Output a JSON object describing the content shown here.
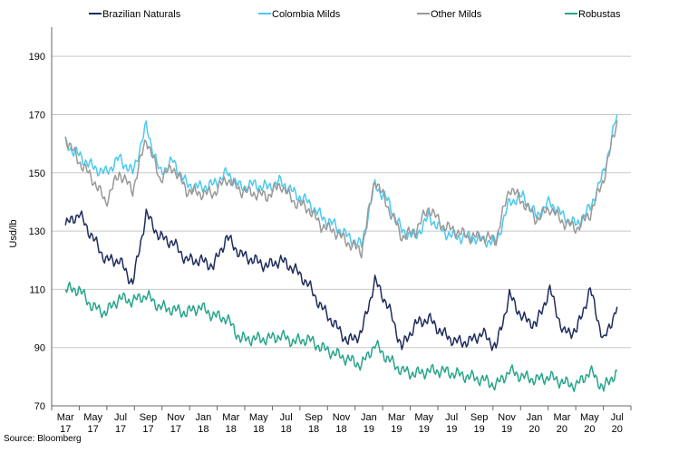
{
  "chart_data": {
    "type": "line",
    "title": "",
    "xlabel": "",
    "ylabel": "Usd/lb",
    "ylim": [
      70,
      200
    ],
    "yticks": [
      70,
      90,
      110,
      130,
      150,
      170,
      190
    ],
    "grid": "horizontal",
    "legend_position": "top",
    "x_tick_labels": [
      [
        "Mar",
        "17"
      ],
      [
        "May",
        "17"
      ],
      [
        "Jul",
        "17"
      ],
      [
        "Sep",
        "17"
      ],
      [
        "Nov",
        "17"
      ],
      [
        "Jan",
        "18"
      ],
      [
        "Mar",
        "18"
      ],
      [
        "May",
        "18"
      ],
      [
        "Jul",
        "18"
      ],
      [
        "Sep",
        "18"
      ],
      [
        "Nov",
        "18"
      ],
      [
        "Jan",
        "19"
      ],
      [
        "Mar",
        "19"
      ],
      [
        "May",
        "19"
      ],
      [
        "Jul",
        "19"
      ],
      [
        "Sep",
        "19"
      ],
      [
        "Nov",
        "19"
      ],
      [
        "Jan",
        "20"
      ],
      [
        "Mar",
        "20"
      ],
      [
        "May",
        "20"
      ],
      [
        "Jul",
        "20"
      ]
    ],
    "x": [
      0,
      0.5,
      1,
      1.5,
      2,
      2.5,
      3,
      3.5,
      4,
      4.5,
      5,
      5.5,
      6,
      6.5,
      7,
      7.5,
      8,
      8.5,
      9,
      9.5,
      10,
      10.5,
      11,
      11.5,
      12,
      12.5,
      13,
      13.5,
      14,
      14.5,
      15,
      15.5,
      16,
      16.5,
      17,
      17.5,
      18,
      18.5,
      19,
      19.5,
      20,
      20.5
    ],
    "series": [
      {
        "name": "Brazilian Naturals",
        "color": "#1f2d5c",
        "values": [
          132,
          136,
          128,
          120,
          120,
          112,
          136,
          128,
          126,
          120,
          120,
          118,
          128,
          122,
          120,
          118,
          120,
          117,
          112,
          104,
          98,
          92,
          95,
          113,
          104,
          90,
          98,
          100,
          95,
          92,
          92,
          95,
          90,
          108,
          100,
          98,
          110,
          95,
          96,
          110,
          92,
          104
        ]
      },
      {
        "name": "Colombia Milds",
        "color": "#4cc9ee",
        "values": [
          160,
          156,
          152,
          150,
          155,
          150,
          166,
          150,
          154,
          146,
          145,
          146,
          150,
          145,
          146,
          145,
          147,
          143,
          140,
          135,
          132,
          128,
          125,
          146,
          140,
          130,
          128,
          135,
          130,
          128,
          128,
          127,
          126,
          140,
          142,
          135,
          140,
          135,
          132,
          138,
          150,
          170
        ]
      },
      {
        "name": "Other Milds",
        "color": "#999999",
        "values": [
          162,
          154,
          148,
          140,
          150,
          144,
          162,
          148,
          152,
          144,
          143,
          143,
          148,
          144,
          143,
          142,
          146,
          140,
          138,
          132,
          130,
          126,
          123,
          148,
          138,
          128,
          130,
          138,
          132,
          130,
          128,
          128,
          127,
          145,
          140,
          134,
          138,
          133,
          131,
          136,
          148,
          168
        ]
      },
      {
        "name": "Robustas",
        "color": "#27a58b",
        "values": [
          110,
          110,
          104,
          102,
          107,
          106,
          108,
          104,
          103,
          102,
          104,
          101,
          100,
          93,
          93,
          93,
          94,
          92,
          93,
          90,
          88,
          86,
          84,
          91,
          86,
          82,
          81,
          82,
          82,
          81,
          80,
          79,
          77,
          82,
          80,
          79,
          80,
          78,
          77,
          82,
          76,
          82
        ]
      }
    ],
    "source": "Source: Bloomberg"
  }
}
